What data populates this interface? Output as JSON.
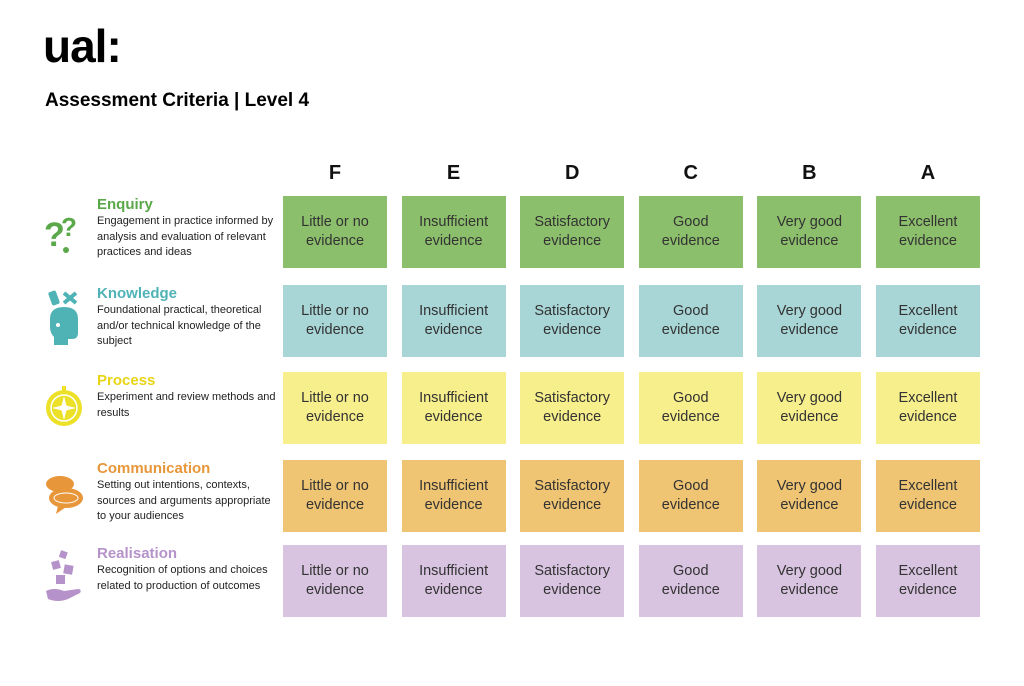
{
  "header": {
    "logo": "ual:",
    "title": "Assessment Criteria | Level 4"
  },
  "grades": [
    "F",
    "E",
    "D",
    "C",
    "B",
    "A"
  ],
  "rows": [
    {
      "name": "Enquiry",
      "description": "Engagement in practice informed by analysis and evaluation of relevant practices and ideas",
      "icon": "question-marks-icon",
      "name_color": "#5aa84a",
      "cell_color": "#8cbf6c",
      "cells": [
        "Little or no evidence",
        "Insufficient evidence",
        "Satisfactory evidence",
        "Good evidence",
        "Very good evidence",
        "Excellent evidence"
      ]
    },
    {
      "name": "Knowledge",
      "description": "Foundational practical, theoretical and/or technical knowledge of the subject",
      "icon": "head-tools-icon",
      "name_color": "#4fb3b6",
      "cell_color": "#a8d5d5",
      "cells": [
        "Little or no evidence",
        "Insufficient evidence",
        "Satisfactory evidence",
        "Good evidence",
        "Very good evidence",
        "Excellent evidence"
      ]
    },
    {
      "name": "Process",
      "description": "Experiment and review methods and results",
      "icon": "compass-icon",
      "name_color": "#e8d414",
      "cell_color": "#f7ee8c",
      "cells": [
        "Little or no evidence",
        "Insufficient evidence",
        "Satisfactory evidence",
        "Good evidence",
        "Very good evidence",
        "Excellent evidence"
      ]
    },
    {
      "name": "Communication",
      "description": "Setting out intentions, contexts, sources and arguments appropriate to your audiences",
      "icon": "speech-bubbles-icon",
      "name_color": "#e8963a",
      "cell_color": "#efc473",
      "cells": [
        "Little or no evidence",
        "Insufficient evidence",
        "Satisfactory evidence",
        "Good evidence",
        "Very good evidence",
        "Excellent evidence"
      ]
    },
    {
      "name": "Realisation",
      "description": "Recognition of options and choices related to production of outcomes",
      "icon": "hand-blocks-icon",
      "name_color": "#b592c9",
      "cell_color": "#d8c4e0",
      "cells": [
        "Little or no evidence",
        "Insufficient evidence",
        "Satisfactory evidence",
        "Good evidence",
        "Very good evidence",
        "Excellent evidence"
      ]
    }
  ]
}
